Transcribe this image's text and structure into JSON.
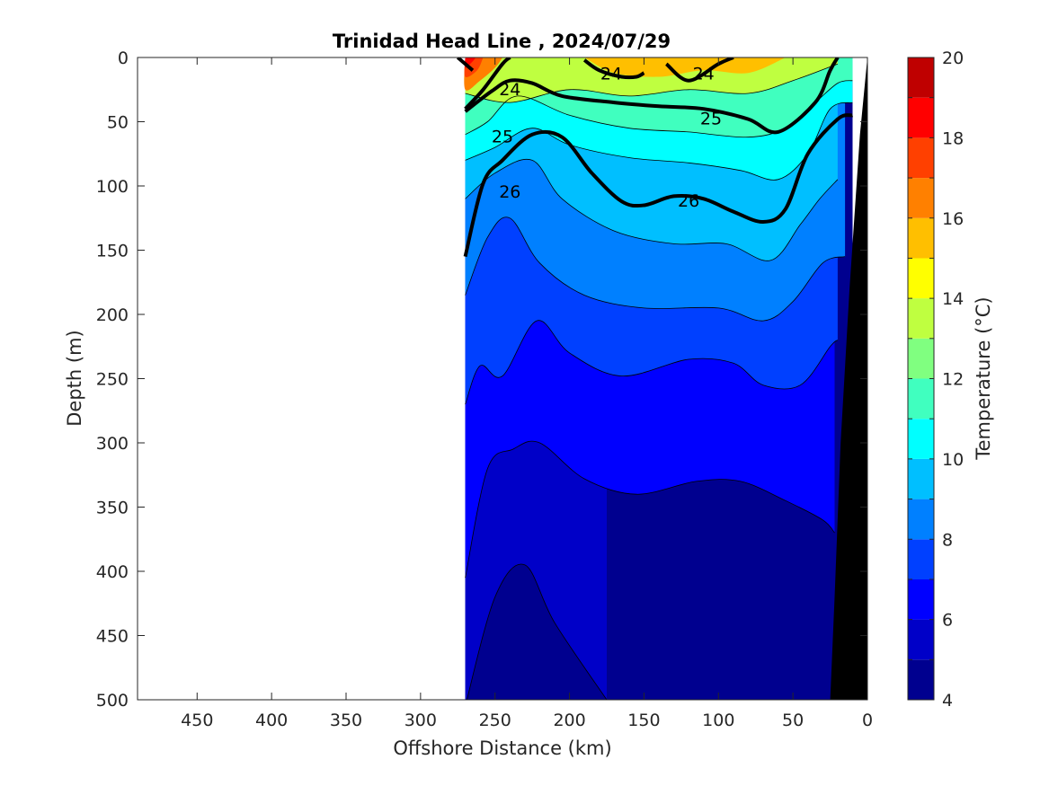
{
  "chart_data": {
    "type": "heatmap",
    "title": "Trinidad Head Line , 2024/07/29",
    "xlabel": "Offshore Distance (km)",
    "ylabel": "Depth (m)",
    "xlim": [
      490,
      0
    ],
    "ylim": [
      500,
      0
    ],
    "x_reversed": true,
    "y_reversed": true,
    "x_ticks": [
      450,
      400,
      350,
      300,
      250,
      200,
      150,
      100,
      50,
      0
    ],
    "y_ticks": [
      0,
      50,
      100,
      150,
      200,
      250,
      300,
      350,
      400,
      450,
      500
    ],
    "colorbar": {
      "label": "Temperature (°C)",
      "range": [
        4,
        20
      ],
      "ticks": [
        4,
        6,
        8,
        10,
        12,
        14,
        16,
        18,
        20
      ],
      "levels": [
        4,
        5,
        6,
        7,
        8,
        9,
        10,
        11,
        12,
        13,
        14,
        15,
        16,
        17,
        18,
        19,
        20
      ],
      "colors": [
        "#00008f",
        "#0000c8",
        "#0000ff",
        "#0040ff",
        "#0080ff",
        "#00bfff",
        "#00ffff",
        "#40ffbf",
        "#80ff80",
        "#bfff40",
        "#ffff00",
        "#ffbf00",
        "#ff8000",
        "#ff4000",
        "#ff0000",
        "#bf0000"
      ]
    },
    "data_extent_km": [
      270,
      10
    ],
    "temperature_isotherms": [
      {
        "temp": 13,
        "points": [
          [
            270,
            28
          ],
          [
            240,
            35
          ],
          [
            200,
            25
          ],
          [
            160,
            30
          ],
          [
            120,
            25
          ],
          [
            80,
            28
          ],
          [
            50,
            18
          ],
          [
            20,
            5
          ]
        ]
      },
      {
        "temp": 11,
        "points": [
          [
            270,
            60
          ],
          [
            255,
            50
          ],
          [
            235,
            30
          ],
          [
            200,
            45
          ],
          [
            160,
            55
          ],
          [
            120,
            58
          ],
          [
            80,
            62
          ],
          [
            55,
            55
          ],
          [
            35,
            35
          ],
          [
            20,
            20
          ],
          [
            10,
            18
          ]
        ]
      },
      {
        "temp": 10,
        "points": [
          [
            270,
            80
          ],
          [
            250,
            70
          ],
          [
            225,
            55
          ],
          [
            200,
            68
          ],
          [
            160,
            78
          ],
          [
            120,
            82
          ],
          [
            85,
            88
          ],
          [
            60,
            95
          ],
          [
            40,
            75
          ],
          [
            25,
            40
          ],
          [
            10,
            35
          ]
        ]
      },
      {
        "temp": 9,
        "points": [
          [
            270,
            110
          ],
          [
            250,
            90
          ],
          [
            225,
            80
          ],
          [
            205,
            110
          ],
          [
            170,
            135
          ],
          [
            130,
            145
          ],
          [
            95,
            145
          ],
          [
            65,
            158
          ],
          [
            45,
            130
          ],
          [
            32,
            110
          ],
          [
            20,
            95
          ]
        ]
      },
      {
        "temp": 8,
        "points": [
          [
            270,
            185
          ],
          [
            255,
            140
          ],
          [
            240,
            125
          ],
          [
            220,
            160
          ],
          [
            190,
            185
          ],
          [
            150,
            195
          ],
          [
            100,
            195
          ],
          [
            70,
            205
          ],
          [
            50,
            190
          ],
          [
            30,
            160
          ],
          [
            15,
            155
          ]
        ]
      },
      {
        "temp": 7,
        "points": [
          [
            270,
            270
          ],
          [
            260,
            240
          ],
          [
            245,
            248
          ],
          [
            222,
            205
          ],
          [
            200,
            230
          ],
          [
            165,
            248
          ],
          [
            120,
            235
          ],
          [
            90,
            238
          ],
          [
            70,
            255
          ],
          [
            45,
            255
          ],
          [
            25,
            225
          ],
          [
            20,
            220
          ]
        ]
      },
      {
        "temp": 6,
        "points": [
          [
            270,
            405
          ],
          [
            255,
            320
          ],
          [
            238,
            305
          ],
          [
            220,
            300
          ],
          [
            190,
            328
          ],
          [
            155,
            340
          ],
          [
            115,
            330
          ],
          [
            85,
            330
          ],
          [
            55,
            345
          ],
          [
            30,
            360
          ],
          [
            22,
            370
          ]
        ]
      },
      {
        "temp": 5,
        "points": [
          [
            270,
            505
          ],
          [
            250,
            420
          ],
          [
            230,
            395
          ],
          [
            210,
            440
          ],
          [
            175,
            500
          ]
        ]
      }
    ],
    "density_contours": [
      {
        "sigma_theta": 24,
        "segments": [
          {
            "points": [
              [
                270,
                40
              ],
              [
                258,
                25
              ],
              [
                245,
                5
              ],
              [
                240,
                0
              ]
            ]
          },
          {
            "points": [
              [
                275,
                0
              ],
              [
                265,
                10
              ]
            ]
          },
          {
            "points": [
              [
                190,
                2
              ],
              [
                180,
                10
              ],
              [
                165,
                15
              ],
              [
                155,
                15
              ],
              [
                150,
                12
              ]
            ]
          },
          {
            "points": [
              [
                135,
                5
              ],
              [
                120,
                18
              ],
              [
                100,
                5
              ],
              [
                90,
                0
              ]
            ]
          }
        ]
      },
      {
        "sigma_theta": 25,
        "points": [
          [
            270,
            42
          ],
          [
            252,
            26
          ],
          [
            240,
            18
          ],
          [
            225,
            20
          ],
          [
            205,
            30
          ],
          [
            170,
            35
          ],
          [
            140,
            38
          ],
          [
            110,
            40
          ],
          [
            80,
            48
          ],
          [
            60,
            58
          ],
          [
            35,
            35
          ],
          [
            25,
            10
          ],
          [
            20,
            0
          ]
        ]
      },
      {
        "sigma_theta": 26,
        "points": [
          [
            270,
            155
          ],
          [
            258,
            98
          ],
          [
            245,
            80
          ],
          [
            225,
            60
          ],
          [
            205,
            62
          ],
          [
            185,
            90
          ],
          [
            165,
            112
          ],
          [
            150,
            115
          ],
          [
            130,
            108
          ],
          [
            110,
            110
          ],
          [
            90,
            120
          ],
          [
            70,
            128
          ],
          [
            55,
            118
          ],
          [
            40,
            75
          ],
          [
            20,
            48
          ],
          [
            10,
            45
          ]
        ]
      }
    ],
    "contour_labels": [
      {
        "text": "24",
        "x": 240,
        "y": 25
      },
      {
        "text": "24",
        "x": 172,
        "y": 13
      },
      {
        "text": "24",
        "x": 110,
        "y": 13
      },
      {
        "text": "25",
        "x": 245,
        "y": 62
      },
      {
        "text": "25",
        "x": 105,
        "y": 48
      },
      {
        "text": "26",
        "x": 240,
        "y": 105
      },
      {
        "text": "26",
        "x": 120,
        "y": 112
      }
    ],
    "bathymetry": {
      "color": "#000000",
      "points": [
        [
          25,
          500
        ],
        [
          22,
          420
        ],
        [
          18,
          300
        ],
        [
          12,
          180
        ],
        [
          5,
          60
        ],
        [
          0,
          0
        ]
      ]
    }
  }
}
